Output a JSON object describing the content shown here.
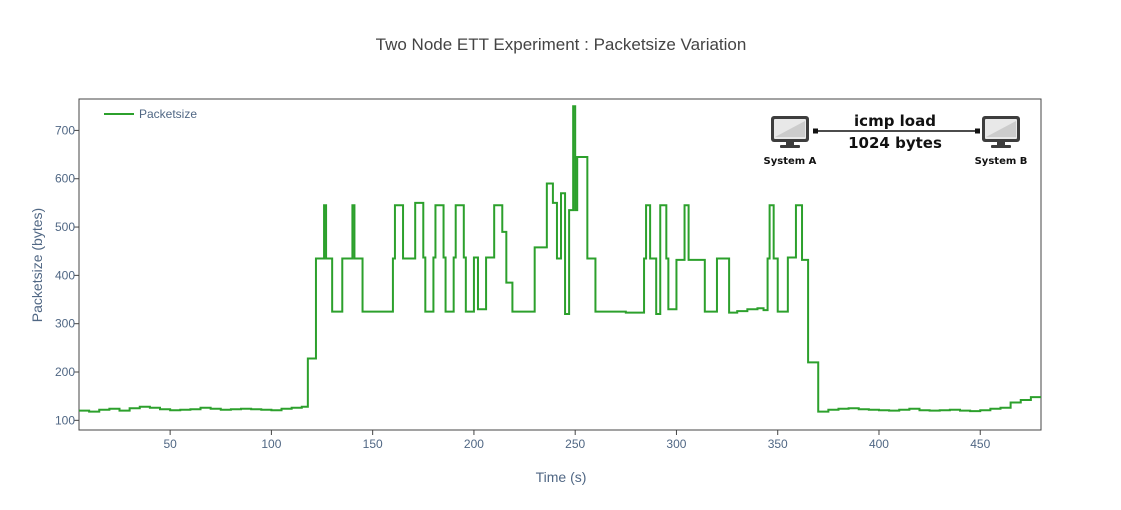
{
  "chart_data": {
    "type": "line",
    "title": "Two Node ETT Experiment : Packetsize Variation",
    "xlabel": "Time (s)",
    "ylabel": "Packetsize (bytes)",
    "xlim": [
      5,
      480
    ],
    "ylim": [
      80,
      765
    ],
    "xticks": [
      50,
      100,
      150,
      200,
      250,
      300,
      350,
      400,
      450
    ],
    "yticks": [
      100,
      200,
      300,
      400,
      500,
      600,
      700
    ],
    "grid": false,
    "legend_position": "top-left",
    "line_shape": "step",
    "series": [
      {
        "name": "Packetsize",
        "color": "#2ca02c",
        "x": [
          5,
          10,
          15,
          20,
          25,
          30,
          35,
          40,
          45,
          50,
          55,
          60,
          65,
          70,
          75,
          80,
          85,
          90,
          95,
          100,
          105,
          110,
          115,
          118,
          122,
          126,
          127,
          130,
          135,
          140,
          141,
          145,
          150,
          155,
          160,
          161,
          165,
          170,
          171,
          175,
          176,
          180,
          181,
          185,
          186,
          190,
          191,
          195,
          196,
          200,
          202,
          206,
          210,
          214,
          216,
          219,
          224,
          230,
          236,
          239,
          241,
          243,
          245,
          247,
          249,
          250,
          251,
          252,
          256,
          260,
          265,
          270,
          275,
          280,
          284,
          285,
          287,
          290,
          292,
          295,
          296,
          300,
          304,
          306,
          310,
          314,
          315,
          320,
          326,
          330,
          335,
          340,
          343,
          345,
          346,
          348,
          350,
          355,
          359,
          362,
          365,
          370,
          375,
          380,
          385,
          390,
          395,
          400,
          405,
          410,
          415,
          420,
          425,
          430,
          435,
          440,
          445,
          450,
          455,
          460,
          465,
          470,
          475,
          480
        ],
        "y": [
          120,
          118,
          122,
          124,
          120,
          125,
          128,
          126,
          123,
          121,
          122,
          123,
          126,
          124,
          122,
          123,
          124,
          123,
          122,
          121,
          124,
          126,
          128,
          228,
          435,
          545,
          435,
          325,
          435,
          545,
          435,
          325,
          325,
          325,
          435,
          545,
          435,
          435,
          550,
          437,
          325,
          437,
          545,
          437,
          325,
          437,
          545,
          437,
          325,
          437,
          330,
          437,
          545,
          490,
          385,
          325,
          325,
          458,
          590,
          550,
          435,
          570,
          320,
          535,
          750,
          535,
          645,
          645,
          435,
          325,
          325,
          325,
          323,
          323,
          435,
          545,
          435,
          320,
          545,
          435,
          330,
          432,
          545,
          432,
          432,
          325,
          325,
          435,
          323,
          326,
          330,
          332,
          328,
          435,
          545,
          435,
          325,
          437,
          545,
          432,
          220,
          118,
          122,
          124,
          125,
          123,
          122,
          121,
          120,
          122,
          124,
          121,
          120,
          121,
          122,
          120,
          119,
          121,
          124,
          126,
          137,
          142,
          148,
          150
        ]
      }
    ]
  },
  "inset": {
    "load_line1": "icmp load",
    "load_line2": "1024 bytes",
    "node_a": "System A",
    "node_b": "System B"
  }
}
